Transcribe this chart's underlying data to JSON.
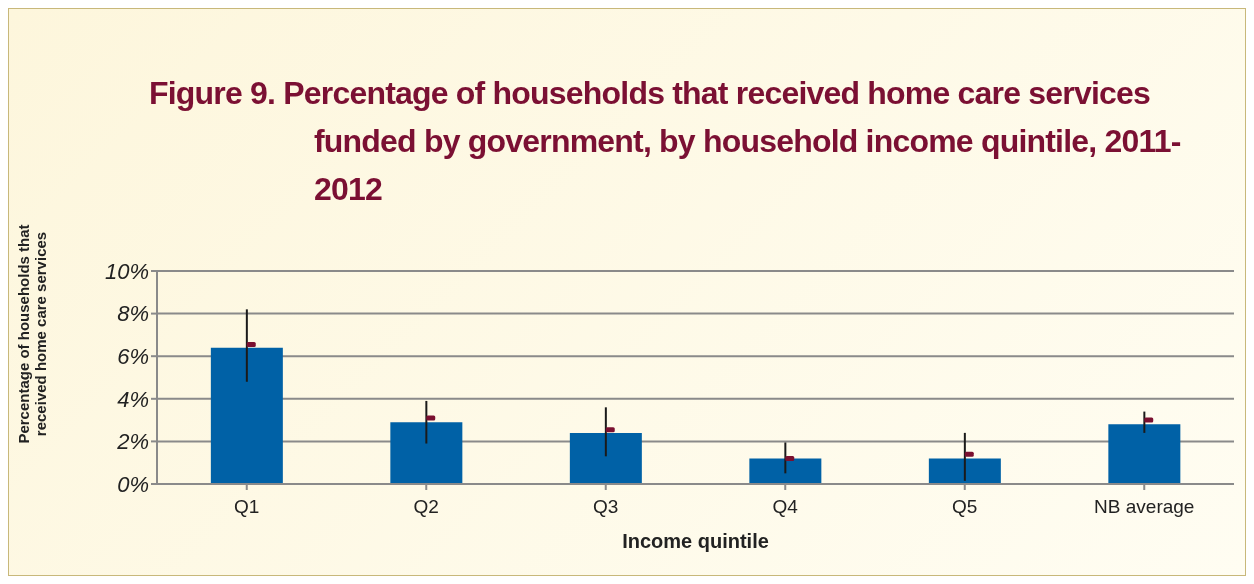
{
  "chart_data": {
    "type": "bar",
    "title": "Figure 9.  Percentage of households that received home care services funded by government, by household income quintile, 2011-2012",
    "xlabel": "Income quintile",
    "ylabel": "Percentage of households that received home care services",
    "categories": [
      "Q1",
      "Q2",
      "Q3",
      "Q4",
      "Q5",
      "NB average"
    ],
    "series": [
      {
        "color": "#0061a6",
        "values": [
          6.4,
          2.9,
          2.4,
          1.2,
          1.2,
          2.8
        ],
        "errors": [
          [
            4.8,
            8.2
          ],
          [
            1.9,
            3.9
          ],
          [
            1.3,
            3.6
          ],
          [
            0.5,
            1.95
          ],
          [
            0.15,
            2.4
          ],
          [
            2.4,
            3.4
          ]
        ]
      },
      {
        "type": "scatter",
        "color": "#7a1030",
        "marker": "square",
        "x": [
          "Q1",
          "Q2",
          "Q3",
          "Q4",
          "Q5",
          "NB average"
        ],
        "values": [
          6.55,
          3.1,
          2.55,
          1.2,
          1.4,
          3.0
        ]
      }
    ],
    "ylim": [
      0,
      10
    ],
    "yticks": [
      {
        "value": 0,
        "label": "0%"
      },
      {
        "value": 2,
        "label": "2%"
      },
      {
        "value": 4,
        "label": "4%"
      },
      {
        "value": 6,
        "label": "6%"
      },
      {
        "value": 8,
        "label": "8%"
      },
      {
        "value": 10,
        "label": "10%"
      }
    ],
    "grid": "y"
  }
}
